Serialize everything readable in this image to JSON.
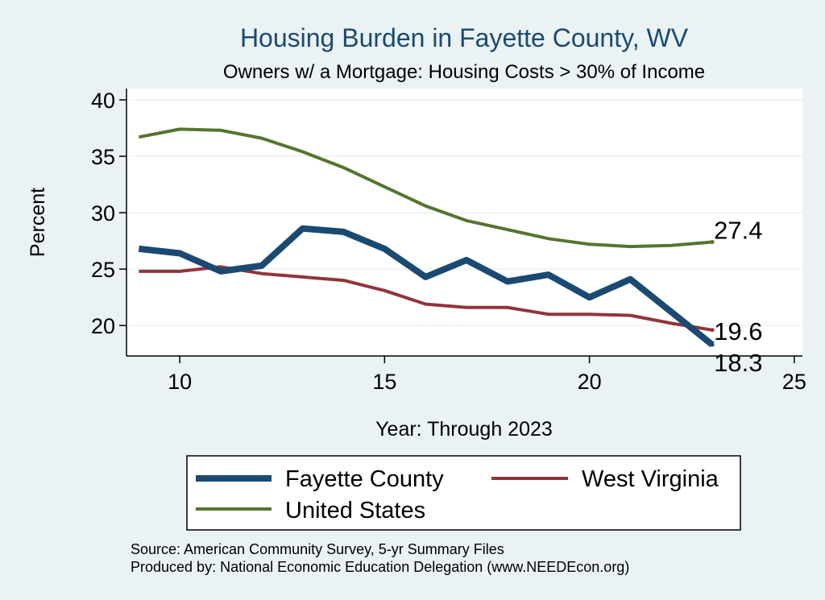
{
  "chart_data": {
    "type": "line",
    "title": "Housing Burden in Fayette County, WV",
    "subtitle": "Owners w/ a Mortgage: Housing Costs > 30% of Income",
    "xlabel": "Year: Through 2023",
    "ylabel": "Percent",
    "xlim": [
      8.7,
      25.2
    ],
    "ylim": [
      17.3,
      41.0
    ],
    "xticks": [
      10,
      15,
      20,
      25
    ],
    "yticks": [
      20,
      25,
      30,
      35,
      40
    ],
    "grid": true,
    "legend_position": "bottom",
    "x": [
      9,
      10,
      11,
      12,
      13,
      14,
      15,
      16,
      17,
      18,
      19,
      20,
      21,
      22,
      23
    ],
    "series": [
      {
        "name": "Fayette County",
        "color": "#1a4a72",
        "values": [
          26.8,
          26.4,
          24.8,
          25.3,
          28.6,
          28.3,
          26.8,
          24.3,
          25.8,
          23.9,
          24.5,
          22.5,
          24.1,
          21.2,
          18.3
        ],
        "end_label": "18.3"
      },
      {
        "name": "West Virginia",
        "color": "#90353b",
        "values": [
          24.8,
          24.8,
          25.2,
          24.6,
          24.3,
          24.0,
          23.1,
          21.9,
          21.6,
          21.6,
          21.0,
          21.0,
          20.9,
          20.2,
          19.6
        ],
        "end_label": "19.6"
      },
      {
        "name": "United States",
        "color": "#55752f",
        "values": [
          36.7,
          37.4,
          37.3,
          36.6,
          35.4,
          34.0,
          32.3,
          30.6,
          29.3,
          28.5,
          27.7,
          27.2,
          27.0,
          27.1,
          27.4
        ],
        "end_label": "27.4"
      }
    ],
    "notes": [
      "Source: American Community Survey, 5-yr Summary Files",
      "Produced by: National Economic Education Delegation (www.NEEDEcon.org)"
    ]
  }
}
